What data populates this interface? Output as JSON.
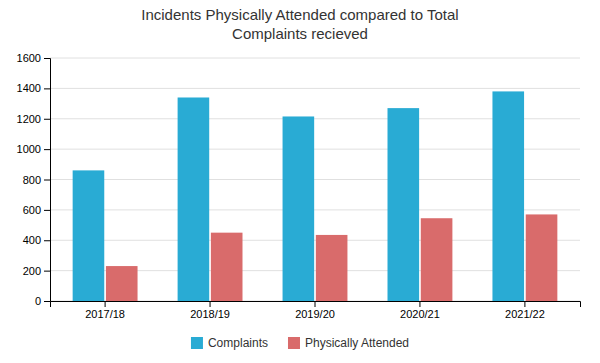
{
  "chart_data": {
    "type": "bar",
    "title": "Incidents Physically Attended compared to Total\nComplaints recieved",
    "categories": [
      "2017/18",
      "2018/19",
      "2019/20",
      "2020/21",
      "2021/22"
    ],
    "series": [
      {
        "name": "Complaints",
        "color": "#29ABD4",
        "values": [
          860,
          1340,
          1215,
          1270,
          1380
        ]
      },
      {
        "name": "Physically Attended",
        "color": "#D96B6B",
        "values": [
          230,
          450,
          435,
          545,
          570
        ]
      }
    ],
    "ylim": [
      0,
      1600
    ],
    "yticks": [
      0,
      200,
      400,
      600,
      800,
      1000,
      1200,
      1400,
      1600
    ],
    "grid": true,
    "legend": "bottom"
  }
}
